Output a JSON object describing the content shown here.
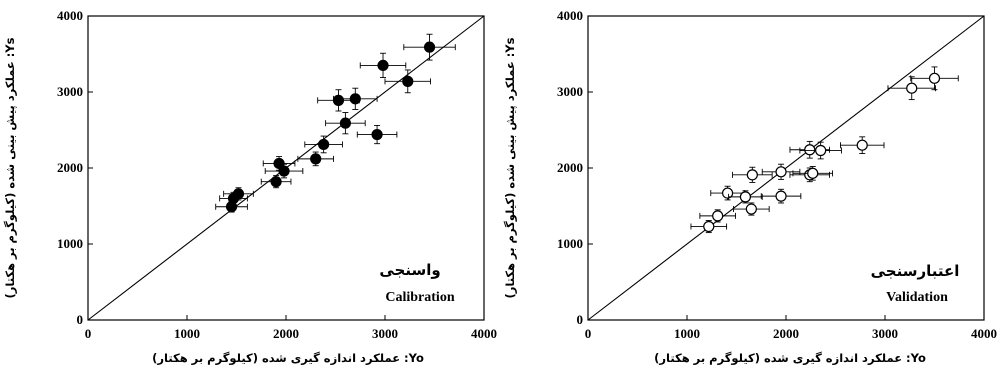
{
  "chart_data": [
    {
      "type": "scatter",
      "title": "Calibration",
      "subtitle": "واسنجی",
      "xlabel": "Yo: عملکرد اندازه گیری شده (کیلوگرم بر هکتار)",
      "ylabel": "Ys: عملکرد پیش بینی شده (کیلوگرم بر هکتار)",
      "xlim": [
        0,
        4000
      ],
      "ylim": [
        0,
        4000
      ],
      "xticks": [
        "0",
        "1000",
        "2000",
        "3000",
        "4000"
      ],
      "yticks": [
        "0",
        "1000",
        "2000",
        "3000",
        "4000"
      ],
      "marker": "filled-circle",
      "color": "#000000",
      "reference_line": "1:1",
      "grid": false,
      "points": [
        {
          "x": 1450,
          "y": 1490,
          "xerr": 160,
          "yerr": 70
        },
        {
          "x": 1470,
          "y": 1600,
          "xerr": 140,
          "yerr": 80
        },
        {
          "x": 1520,
          "y": 1660,
          "xerr": 150,
          "yerr": 80
        },
        {
          "x": 1900,
          "y": 1820,
          "xerr": 150,
          "yerr": 80
        },
        {
          "x": 1930,
          "y": 2060,
          "xerr": 160,
          "yerr": 90
        },
        {
          "x": 1980,
          "y": 1960,
          "xerr": 190,
          "yerr": 90
        },
        {
          "x": 2300,
          "y": 2120,
          "xerr": 180,
          "yerr": 90
        },
        {
          "x": 2380,
          "y": 2310,
          "xerr": 190,
          "yerr": 110
        },
        {
          "x": 2530,
          "y": 2890,
          "xerr": 210,
          "yerr": 140
        },
        {
          "x": 2600,
          "y": 2590,
          "xerr": 200,
          "yerr": 140
        },
        {
          "x": 2700,
          "y": 2910,
          "xerr": 220,
          "yerr": 140
        },
        {
          "x": 2920,
          "y": 2440,
          "xerr": 200,
          "yerr": 120
        },
        {
          "x": 2980,
          "y": 3350,
          "xerr": 230,
          "yerr": 160
        },
        {
          "x": 3230,
          "y": 3140,
          "xerr": 230,
          "yerr": 150
        },
        {
          "x": 3450,
          "y": 3590,
          "xerr": 260,
          "yerr": 170
        }
      ]
    },
    {
      "type": "scatter",
      "title": "Validation",
      "subtitle": "اعتبارسنجی",
      "xlabel": "Yo: عملکرد اندازه گیری شده (کیلوگرم بر هکتار)",
      "ylabel": "Ys: عملکرد پیش بینی شده (کیلوگرم بر هکتار)",
      "xlim": [
        0,
        4000
      ],
      "ylim": [
        0,
        4000
      ],
      "xticks": [
        "0",
        "1000",
        "2000",
        "3000",
        "4000"
      ],
      "yticks": [
        "0",
        "1000",
        "2000",
        "3000",
        "4000"
      ],
      "marker": "open-circle",
      "color": "#000000",
      "reference_line": "1:1",
      "grid": false,
      "points": [
        {
          "x": 1220,
          "y": 1230,
          "xerr": 180,
          "yerr": 80
        },
        {
          "x": 1310,
          "y": 1370,
          "xerr": 180,
          "yerr": 80
        },
        {
          "x": 1410,
          "y": 1670,
          "xerr": 170,
          "yerr": 90
        },
        {
          "x": 1590,
          "y": 1620,
          "xerr": 170,
          "yerr": 80
        },
        {
          "x": 1650,
          "y": 1460,
          "xerr": 180,
          "yerr": 80
        },
        {
          "x": 1660,
          "y": 1910,
          "xerr": 200,
          "yerr": 100
        },
        {
          "x": 1950,
          "y": 1950,
          "xerr": 190,
          "yerr": 100
        },
        {
          "x": 1950,
          "y": 1630,
          "xerr": 200,
          "yerr": 90
        },
        {
          "x": 2240,
          "y": 2240,
          "xerr": 200,
          "yerr": 110
        },
        {
          "x": 2240,
          "y": 1910,
          "xerr": 200,
          "yerr": 90
        },
        {
          "x": 2270,
          "y": 1930,
          "xerr": 200,
          "yerr": 90
        },
        {
          "x": 2350,
          "y": 2230,
          "xerr": 210,
          "yerr": 110
        },
        {
          "x": 2770,
          "y": 2300,
          "xerr": 220,
          "yerr": 110
        },
        {
          "x": 3270,
          "y": 3050,
          "xerr": 240,
          "yerr": 150
        },
        {
          "x": 3500,
          "y": 3180,
          "xerr": 240,
          "yerr": 150
        }
      ]
    }
  ]
}
